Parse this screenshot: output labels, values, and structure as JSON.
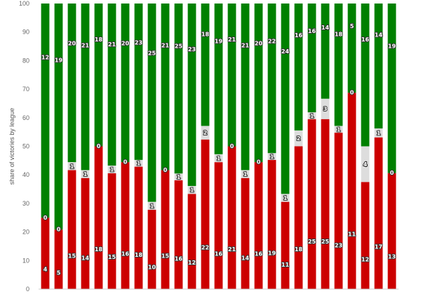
{
  "chart_data": {
    "type": "bar",
    "stacked": true,
    "normalized": true,
    "ylabel": "share of victories by league",
    "ylim": [
      0,
      100
    ],
    "yticks": [
      0,
      10,
      20,
      30,
      40,
      50,
      60,
      70,
      80,
      90,
      100
    ],
    "grid": false,
    "legend": "none",
    "categories": [
      "",
      "",
      "",
      "",
      "",
      "",
      "",
      "",
      "",
      "",
      "",
      "",
      "",
      "",
      "",
      "",
      "",
      "",
      "",
      "",
      "",
      "",
      "",
      "",
      "",
      "",
      ""
    ],
    "series": [
      {
        "color": "#cc0000",
        "values": [
          4,
          5,
          15,
          14,
          18,
          15,
          16,
          18,
          10,
          15,
          16,
          12,
          22,
          16,
          21,
          14,
          16,
          19,
          11,
          18,
          25,
          25,
          23,
          11,
          12,
          17,
          13
        ]
      },
      {
        "color": "#dddddd",
        "values": [
          0,
          0,
          1,
          1,
          0,
          1,
          0,
          1,
          1,
          0,
          1,
          1,
          2,
          1,
          0,
          1,
          0,
          1,
          1,
          2,
          1,
          3,
          1,
          0,
          4,
          1,
          0
        ]
      },
      {
        "color": "#008000",
        "values": [
          12,
          19,
          20,
          21,
          18,
          21,
          20,
          23,
          25,
          21,
          25,
          23,
          18,
          19,
          21,
          21,
          20,
          22,
          24,
          16,
          16,
          14,
          18,
          5,
          16,
          14,
          19
        ]
      }
    ]
  }
}
